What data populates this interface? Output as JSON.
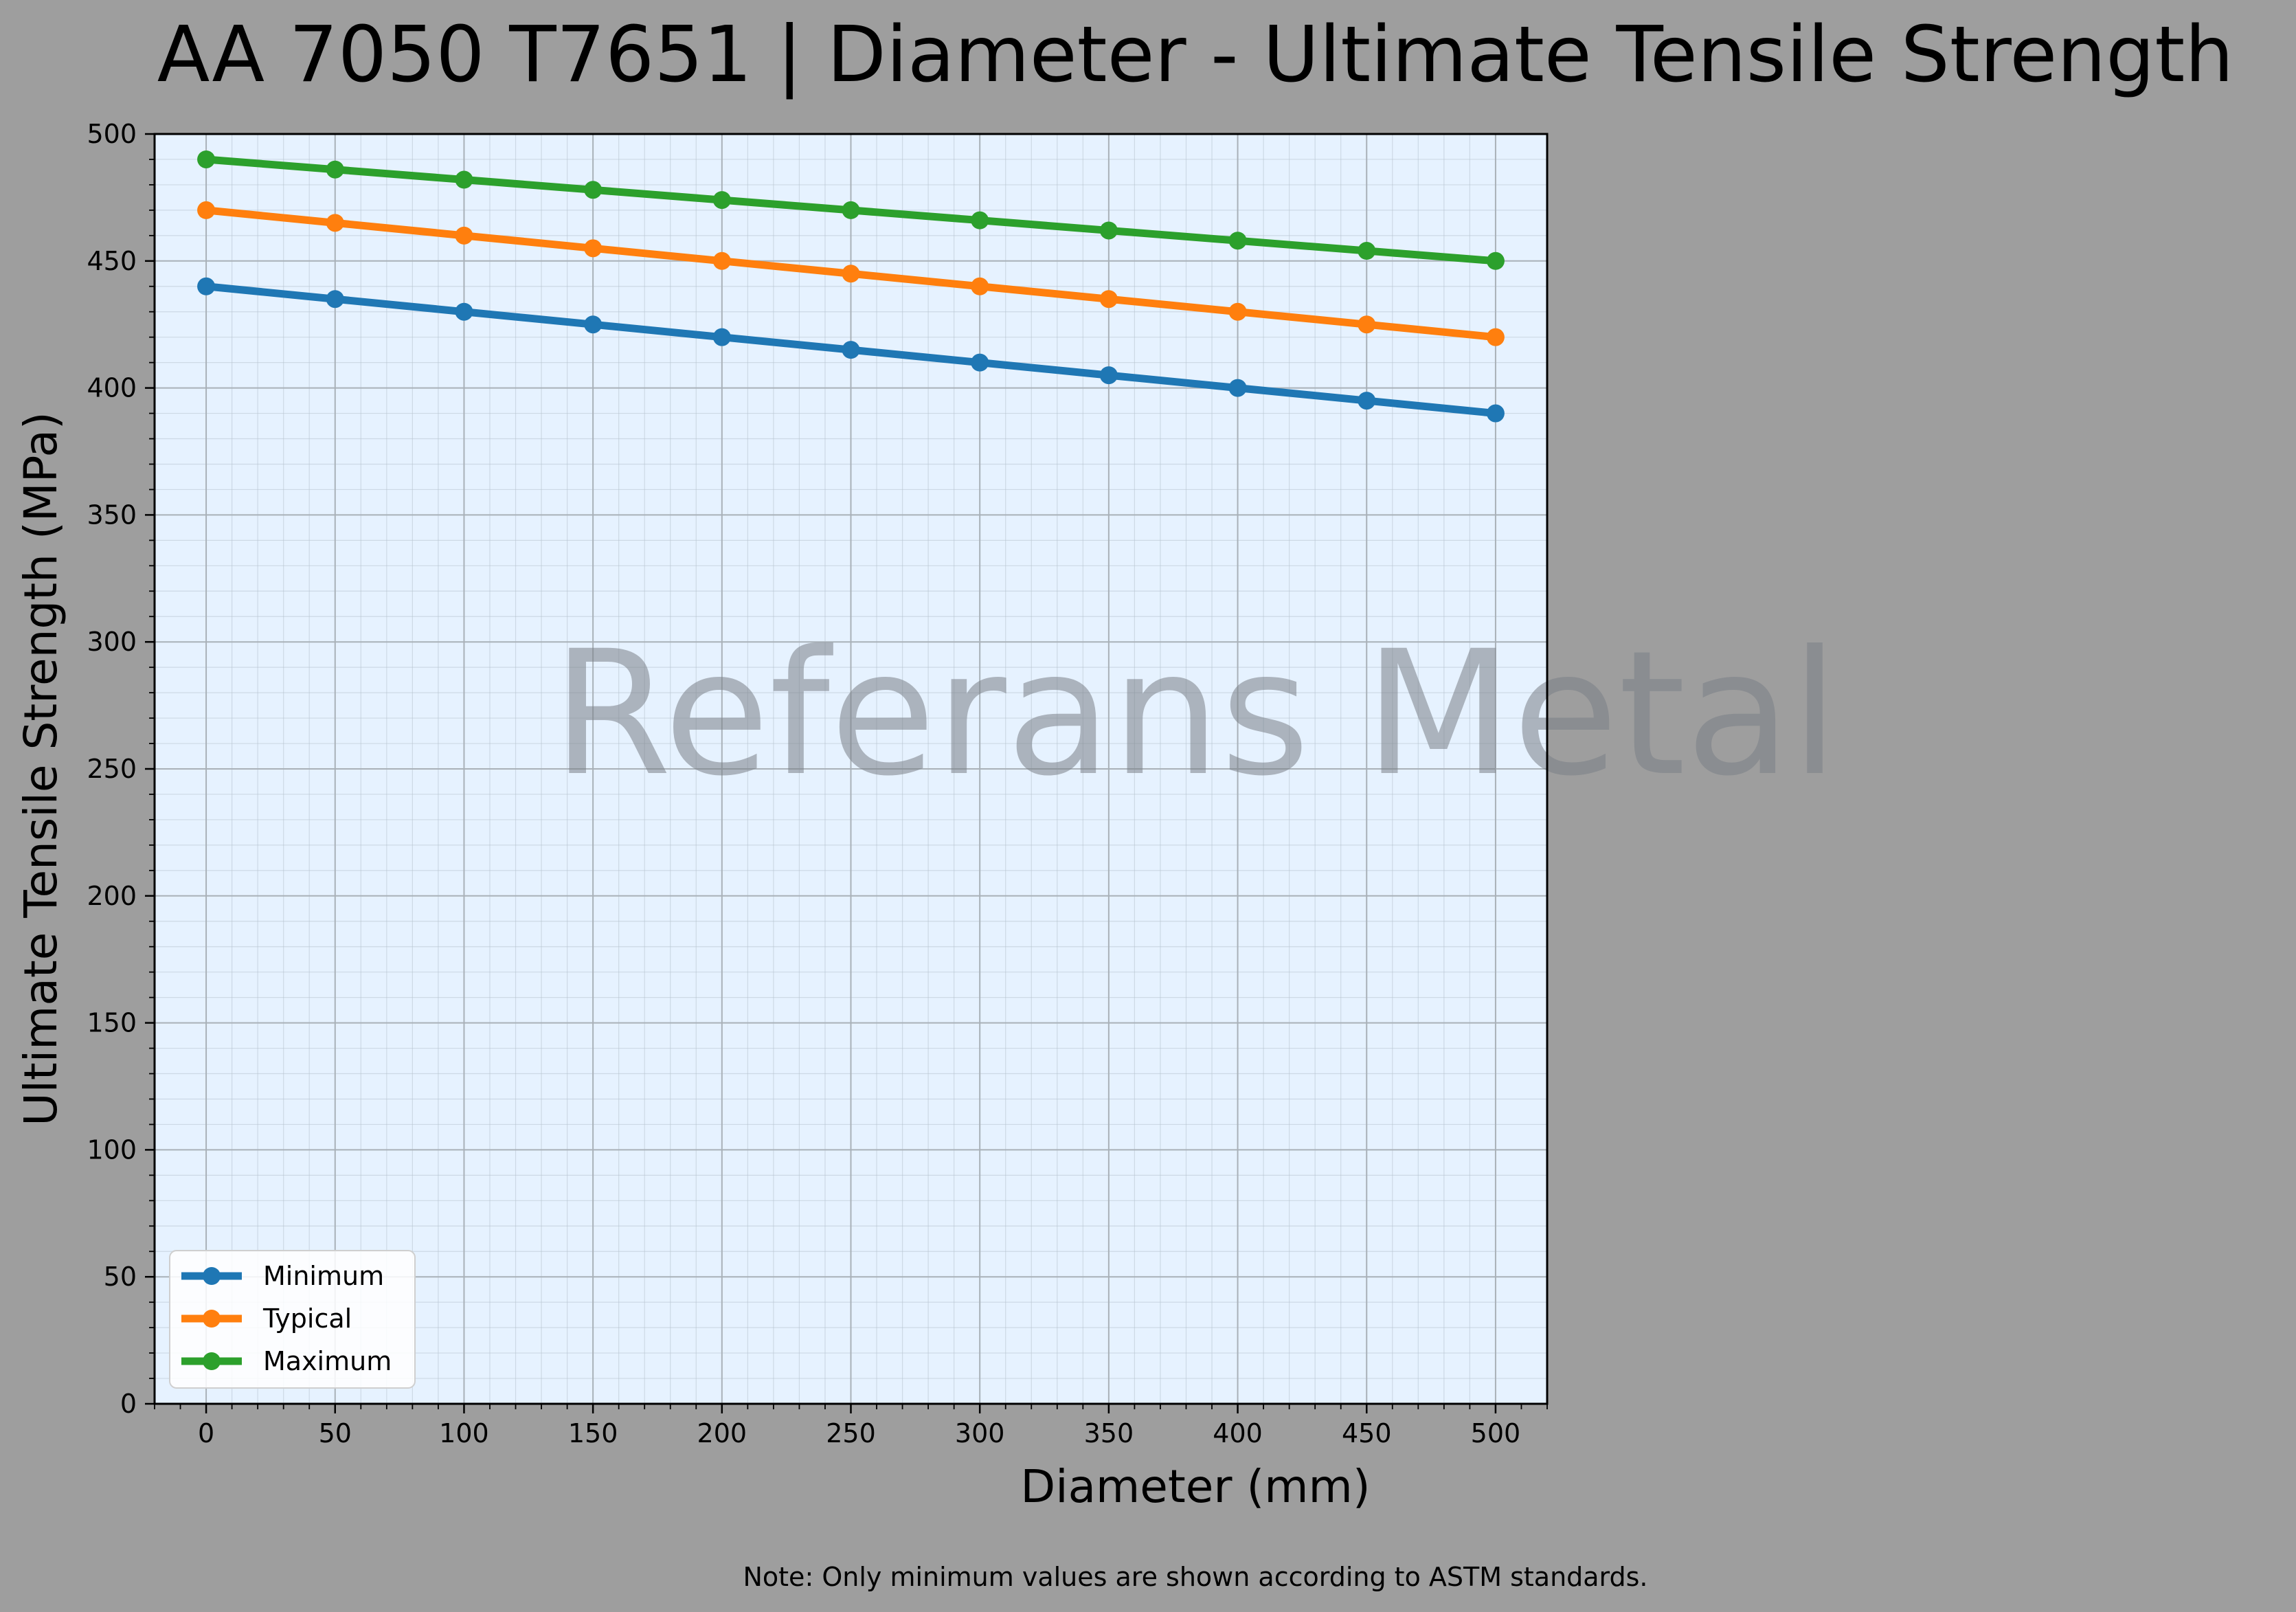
{
  "chart_data": {
    "type": "line",
    "title": "AA 7050 T7651 | Diameter - Ultimate Tensile Strength",
    "xlabel": "Diameter (mm)",
    "ylabel": "Ultimate Tensile Strength (MPa)",
    "x": [
      0,
      50,
      100,
      150,
      200,
      250,
      300,
      350,
      400,
      450,
      500
    ],
    "xlim": [
      -20,
      520
    ],
    "ylim": [
      0,
      500
    ],
    "xticks": [
      "0",
      "50",
      "100",
      "150",
      "200",
      "250",
      "300",
      "350",
      "400",
      "450",
      "500"
    ],
    "yticks": [
      "0",
      "50",
      "100",
      "150",
      "200",
      "250",
      "300",
      "350",
      "400",
      "450",
      "500"
    ],
    "grid": true,
    "legend_position": "lower-left",
    "series": [
      {
        "name": "Minimum",
        "color": "#1f77b4",
        "values": [
          440,
          435,
          430,
          425,
          420,
          415,
          410,
          405,
          400,
          395,
          390
        ]
      },
      {
        "name": "Typical",
        "color": "#ff7f0e",
        "values": [
          470,
          465,
          460,
          455,
          450,
          445,
          440,
          435,
          430,
          425,
          420
        ]
      },
      {
        "name": "Maximum",
        "color": "#2ca02c",
        "values": [
          490,
          486,
          482,
          478,
          474,
          470,
          466,
          462,
          458,
          454,
          450
        ]
      }
    ],
    "watermark": "Referans Metal",
    "note": "Note: Only minimum values are shown according to ASTM standards."
  },
  "colors": {
    "figure_background": "#9e9e9e",
    "plot_background": "#e6f2ff"
  }
}
